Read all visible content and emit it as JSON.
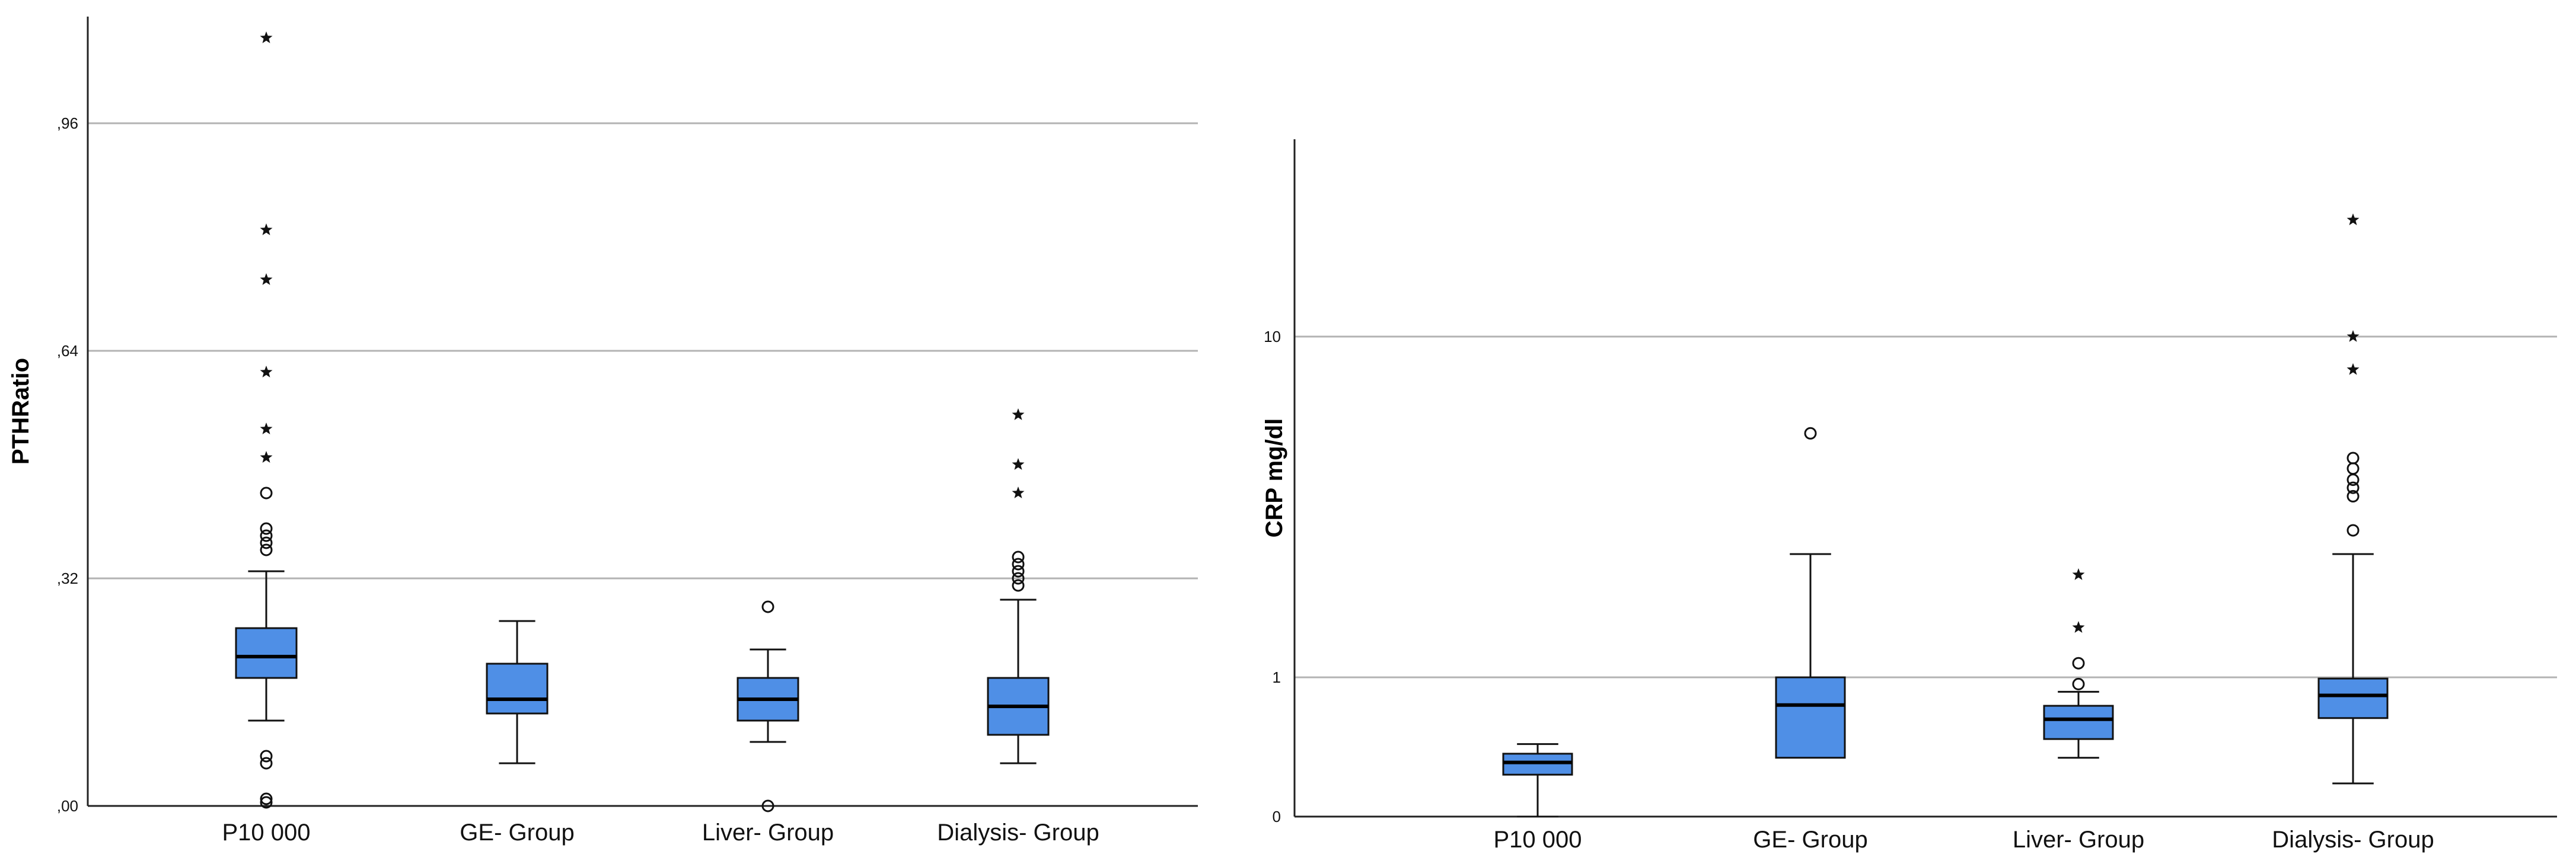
{
  "chart_data": [
    {
      "type": "box",
      "ylabel": "PTHRatio",
      "xlabel": "",
      "yscale": "linear",
      "ylim": [
        0,
        1.2
      ],
      "grid": true,
      "yticks": [
        0,
        0.32,
        0.64,
        0.96
      ],
      "ytick_labels": [
        ",00",
        ",32",
        ",64",
        ",96"
      ],
      "categories": [
        "P10 000",
        "GE- Group",
        "Liver- Group",
        "Dialysis- Group"
      ],
      "box_color": "#4f8fe6",
      "boxes": [
        {
          "min": 0.12,
          "q1": 0.18,
          "median": 0.21,
          "q3": 0.25,
          "max": 0.33,
          "outliers": [
            0.36,
            0.37,
            0.38,
            0.39,
            0.44,
            0.06,
            0.07,
            0.01,
            0.005
          ],
          "extremes": [
            1.08,
            0.81,
            0.74,
            0.61,
            0.53,
            0.49
          ]
        },
        {
          "min": 0.06,
          "q1": 0.13,
          "median": 0.15,
          "q3": 0.2,
          "max": 0.26,
          "outliers": [],
          "extremes": []
        },
        {
          "min": 0.09,
          "q1": 0.12,
          "median": 0.15,
          "q3": 0.18,
          "max": 0.22,
          "outliers": [
            0.28,
            0.0
          ],
          "extremes": []
        },
        {
          "min": 0.06,
          "q1": 0.1,
          "median": 0.14,
          "q3": 0.18,
          "max": 0.29,
          "outliers": [
            0.31,
            0.32,
            0.33,
            0.34,
            0.35
          ],
          "extremes": [
            0.55,
            0.48,
            0.44
          ]
        }
      ]
    },
    {
      "type": "box",
      "ylabel": "CRP mg/dl",
      "xlabel": "",
      "yscale": "log",
      "ylim": [
        0,
        40
      ],
      "grid": true,
      "yticks": [
        0,
        1,
        10
      ],
      "ytick_labels": [
        "0",
        "1",
        "10"
      ],
      "categories": [
        "P10 000",
        "GE- Group",
        "Liver- Group",
        "Dialysis- Group"
      ],
      "box_color": "#4f8fe6",
      "boxes": [
        {
          "min": 0.01,
          "q1": 0.04,
          "median": 0.06,
          "q3": 0.08,
          "max": 0.11,
          "outliers": [],
          "extremes": []
        },
        {
          "min": null,
          "q1": 0.07,
          "median": 0.4,
          "q3": 1.0,
          "max": 2.3,
          "outliers": [
            5.2
          ],
          "extremes": []
        },
        {
          "min": 0.07,
          "q1": 0.13,
          "median": 0.25,
          "q3": 0.39,
          "max": 0.62,
          "outliers": [
            0.8,
            1.1
          ],
          "extremes": [
            1.4,
            2.0
          ]
        },
        {
          "min": 0.03,
          "q1": 0.26,
          "median": 0.55,
          "q3": 0.96,
          "max": 2.3,
          "outliers": [
            2.7,
            3.4,
            3.6,
            3.8,
            4.1,
            4.4
          ],
          "extremes": [
            8.0,
            10.0,
            22.0
          ]
        }
      ]
    }
  ]
}
